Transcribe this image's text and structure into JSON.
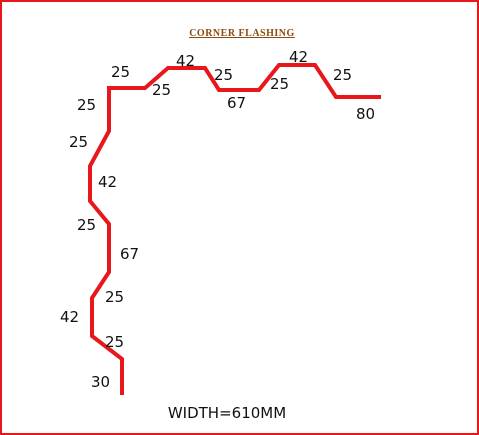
{
  "title": "CORNER FLASHING",
  "width_label": "WIDTH=610MM",
  "colors": {
    "profile": "#e8171b",
    "border": "#e8171b",
    "title": "#8a4b10",
    "text": "#111111"
  },
  "dimensions": [
    {
      "id": "d1",
      "label": "25"
    },
    {
      "id": "d2",
      "label": "25"
    },
    {
      "id": "d3",
      "label": "42"
    },
    {
      "id": "d4",
      "label": "25"
    },
    {
      "id": "d5",
      "label": "67"
    },
    {
      "id": "d6",
      "label": "25"
    },
    {
      "id": "d7",
      "label": "42"
    },
    {
      "id": "d8",
      "label": "25"
    },
    {
      "id": "d9",
      "label": "80"
    },
    {
      "id": "d10",
      "label": "25"
    },
    {
      "id": "d11",
      "label": "25"
    },
    {
      "id": "d12",
      "label": "42"
    },
    {
      "id": "d13",
      "label": "25"
    },
    {
      "id": "d14",
      "label": "67"
    },
    {
      "id": "d15",
      "label": "25"
    },
    {
      "id": "d16",
      "label": "42"
    },
    {
      "id": "d17",
      "label": "25"
    },
    {
      "id": "d18",
      "label": "30"
    }
  ]
}
